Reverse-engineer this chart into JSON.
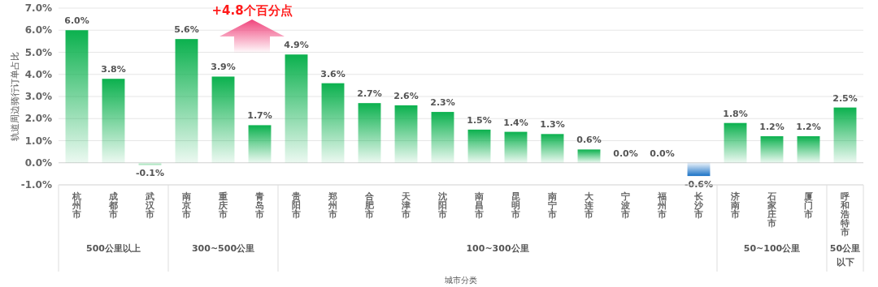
{
  "chart_data": {
    "type": "bar",
    "ylabel": "轨道周边骑行订单占比",
    "xlabel": "城市分类",
    "categories": [
      "杭州市",
      "成都市",
      "武汉市",
      "南京市",
      "重庆市",
      "青岛市",
      "贵阳市",
      "郑州市",
      "合肥市",
      "天津市",
      "沈阳市",
      "南昌市",
      "昆明市",
      "南宁市",
      "大连市",
      "宁波市",
      "福州市",
      "长沙市",
      "济南市",
      "石家庄市",
      "厦门市",
      "呼和浩特市"
    ],
    "values": [
      6.0,
      3.8,
      -0.1,
      5.6,
      3.9,
      1.7,
      4.9,
      3.6,
      2.7,
      2.6,
      2.3,
      1.5,
      1.4,
      1.3,
      0.6,
      0.0,
      0.0,
      -0.6,
      1.8,
      1.2,
      1.2,
      2.5
    ],
    "value_labels": [
      "6.0%",
      "3.8%",
      "-0.1%",
      "5.6%",
      "3.9%",
      "1.7%",
      "4.9%",
      "3.6%",
      "2.7%",
      "2.6%",
      "2.3%",
      "1.5%",
      "1.4%",
      "1.3%",
      "0.6%",
      "0.0%",
      "0.0%",
      "-0.6%",
      "1.8%",
      "1.2%",
      "1.2%",
      "2.5%"
    ],
    "colors": [
      "#0bb14e",
      "#0bb14e",
      "#8fdcaa",
      "#0bb14e",
      "#0bb14e",
      "#0bb14e",
      "#0bb14e",
      "#0bb14e",
      "#0bb14e",
      "#0bb14e",
      "#0bb14e",
      "#0bb14e",
      "#0bb14e",
      "#0bb14e",
      "#0bb14e",
      "#0bb14e",
      "#0bb14e",
      "#1a72c6",
      "#0bb14e",
      "#0bb14e",
      "#0bb14e",
      "#0bb14e"
    ],
    "ylim": [
      -1,
      7
    ],
    "yticks": [
      {
        "value": -1,
        "label": "-1.0%"
      },
      {
        "value": 0,
        "label": "0.0%"
      },
      {
        "value": 1,
        "label": "1.0%"
      },
      {
        "value": 2,
        "label": "2.0%"
      },
      {
        "value": 3,
        "label": "3.0%"
      },
      {
        "value": 4,
        "label": "4.0%"
      },
      {
        "value": 5,
        "label": "5.0%"
      },
      {
        "value": 6,
        "label": "6.0%"
      },
      {
        "value": 7,
        "label": "7.0%"
      }
    ],
    "grid": "y",
    "annotations": [
      "+4.8个百分点",
      "500公里以上",
      "300~500公里",
      "100~300公里",
      "50~100公里",
      "50公里以下"
    ]
  }
}
